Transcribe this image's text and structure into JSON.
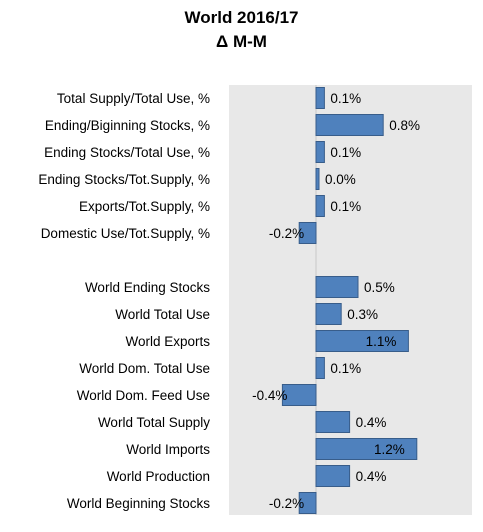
{
  "chart_data": {
    "type": "bar",
    "orientation": "horizontal",
    "title": "World 2016/17",
    "subtitle": "Δ M-M",
    "bar_color": "#4f81bd",
    "plot_background": "#e8e8e8",
    "xlim": [
      -0.6,
      1.6
    ],
    "categories": [
      "Total Supply/Total Use, %",
      "Ending/Biginning Stocks, %",
      "Ending Stocks/Total Use, %",
      "Ending Stocks/Tot.Supply, %",
      "Exports/Tot.Supply, %",
      "Domestic Use/Tot.Supply, %",
      "",
      "World Ending Stocks",
      "World Total Use",
      "World Exports",
      "World Dom. Total Use",
      "World Dom. Feed Use",
      "World Total Supply",
      "World Imports",
      "World Production",
      "World Beginning Stocks"
    ],
    "values": [
      0.1,
      0.8,
      0.1,
      0.0,
      0.1,
      -0.2,
      null,
      0.5,
      0.3,
      1.1,
      0.1,
      -0.4,
      0.4,
      1.2,
      0.4,
      -0.2
    ],
    "data_labels": [
      "0.1%",
      "0.8%",
      "0.1%",
      "0.0%",
      "0.1%",
      "-0.2%",
      "",
      "0.5%",
      "0.3%",
      "1.1%",
      "0.1%",
      "-0.4%",
      "0.4%",
      "1.2%",
      "0.4%",
      "-0.2%"
    ]
  }
}
